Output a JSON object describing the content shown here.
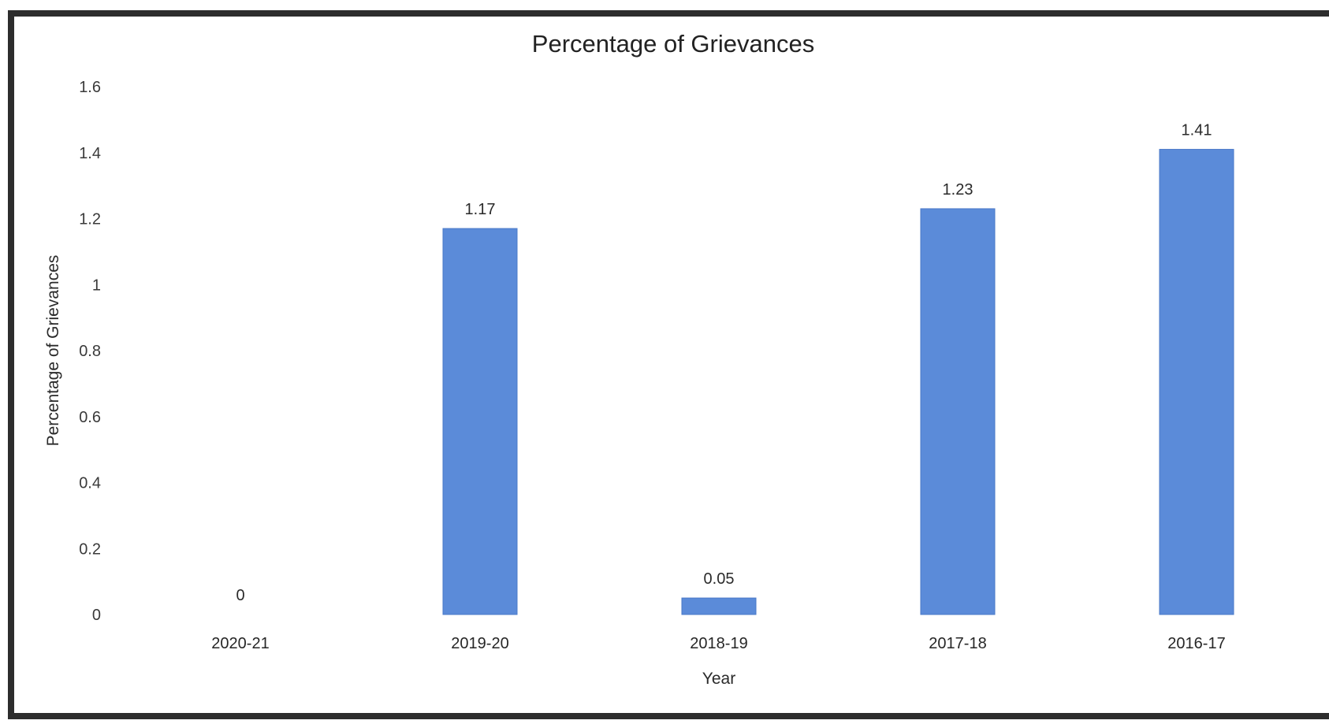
{
  "chart_data": {
    "type": "bar",
    "title": "Percentage of Grievances",
    "xlabel": "Year",
    "ylabel": "Percentage of Grievances",
    "categories": [
      "2020-21",
      "2019-20",
      "2018-19",
      "2017-18",
      "2016-17"
    ],
    "values": [
      0,
      1.17,
      0.05,
      1.23,
      1.41
    ],
    "data_labels": [
      "0",
      "1.17",
      "0.05",
      "1.23",
      "1.41"
    ],
    "ylim": [
      0,
      1.6
    ],
    "yticks": [
      "0",
      "0.2",
      "0.4",
      "0.6",
      "0.8",
      "1",
      "1.2",
      "1.4",
      "1.6"
    ],
    "grid": false,
    "legend": "none",
    "bar_color": "#5b8bd9",
    "frame_color": "#2d2d2d"
  }
}
